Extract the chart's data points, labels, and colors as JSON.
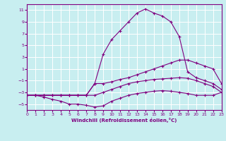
{
  "xlabel": "Windchill (Refroidissement éolien,°C)",
  "xlim": [
    0,
    23
  ],
  "ylim": [
    -6,
    12
  ],
  "yticks": [
    11,
    9,
    7,
    5,
    3,
    1,
    -1,
    -3,
    -5
  ],
  "xticks": [
    0,
    1,
    2,
    3,
    4,
    5,
    6,
    7,
    8,
    9,
    10,
    11,
    12,
    13,
    14,
    15,
    16,
    17,
    18,
    19,
    20,
    21,
    22,
    23
  ],
  "bg_color": "#c8eef0",
  "line_color": "#800080",
  "grid_color": "#ffffff",
  "line1_x": [
    0,
    1,
    2,
    3,
    4,
    5,
    6,
    7,
    8,
    9,
    10,
    11,
    12,
    13,
    14,
    15,
    16,
    17,
    18,
    19,
    20,
    21,
    22,
    23
  ],
  "line1_y": [
    -3.5,
    -3.5,
    -3.5,
    -3.5,
    -3.5,
    -3.5,
    -3.5,
    -3.5,
    -3.5,
    -3.0,
    -2.5,
    -2.0,
    -1.5,
    -1.2,
    -1.0,
    -0.8,
    -0.7,
    -0.6,
    -0.5,
    -0.6,
    -1.0,
    -1.5,
    -2.0,
    -3.0
  ],
  "line2_x": [
    0,
    1,
    2,
    3,
    4,
    5,
    6,
    7,
    8,
    9,
    10,
    11,
    12,
    13,
    14,
    15,
    16,
    17,
    18,
    19,
    20,
    21,
    22,
    23
  ],
  "line2_y": [
    -3.5,
    -3.5,
    -3.8,
    -4.2,
    -4.5,
    -5.0,
    -5.0,
    -5.2,
    -5.5,
    -5.3,
    -4.5,
    -4.0,
    -3.5,
    -3.2,
    -3.0,
    -2.8,
    -2.7,
    -2.8,
    -3.0,
    -3.2,
    -3.5,
    -3.5,
    -3.5,
    -3.0
  ],
  "line3_x": [
    0,
    1,
    2,
    3,
    4,
    5,
    6,
    7,
    8,
    9,
    10,
    11,
    12,
    13,
    14,
    15,
    16,
    17,
    18,
    19,
    20,
    21,
    22,
    23
  ],
  "line3_y": [
    -3.5,
    -3.5,
    -3.5,
    -3.5,
    -3.5,
    -3.5,
    -3.5,
    -3.5,
    -1.5,
    -1.5,
    -1.2,
    -0.8,
    -0.5,
    0.0,
    0.5,
    1.0,
    1.5,
    2.0,
    2.5,
    2.5,
    2.0,
    1.5,
    1.0,
    -1.5
  ],
  "line4_x": [
    0,
    1,
    2,
    3,
    4,
    5,
    6,
    7,
    8,
    9,
    10,
    11,
    12,
    13,
    14,
    15,
    16,
    17,
    18,
    19,
    20,
    21,
    22,
    23
  ],
  "line4_y": [
    -3.5,
    -3.5,
    -3.5,
    -3.5,
    -3.5,
    -3.5,
    -3.5,
    -3.5,
    -1.5,
    3.5,
    6.0,
    7.5,
    9.0,
    10.5,
    11.2,
    10.5,
    10.0,
    9.0,
    6.5,
    0.5,
    -0.5,
    -1.0,
    -1.5,
    -2.5
  ]
}
